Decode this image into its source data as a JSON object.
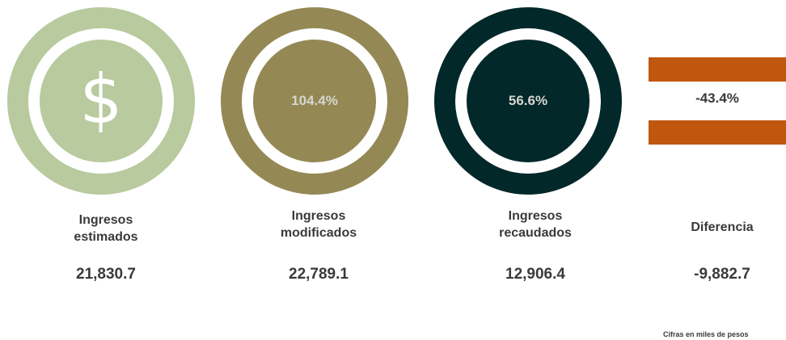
{
  "colors": {
    "estimados": "#b8ca9e",
    "modificados": "#948955",
    "recaudados": "#03282a",
    "diferencia": "#c0570f"
  },
  "cards": [
    {
      "icon": "dollar-icon",
      "symbol": "$",
      "label_line1": "Ingresos",
      "label_line2": "estimados",
      "value": "21,830.7"
    },
    {
      "percent": "104.4%",
      "label_line1": "Ingresos",
      "label_line2": "modificados",
      "value": "22,789.1"
    },
    {
      "percent": "56.6%",
      "label_line1": "Ingresos",
      "label_line2": "recaudados",
      "value": "12,906.4"
    },
    {
      "percent": "-43.4%",
      "label_line1": "Diferencia",
      "value": "-9,882.7"
    }
  ],
  "footnote": "Cifras en miles de pesos"
}
